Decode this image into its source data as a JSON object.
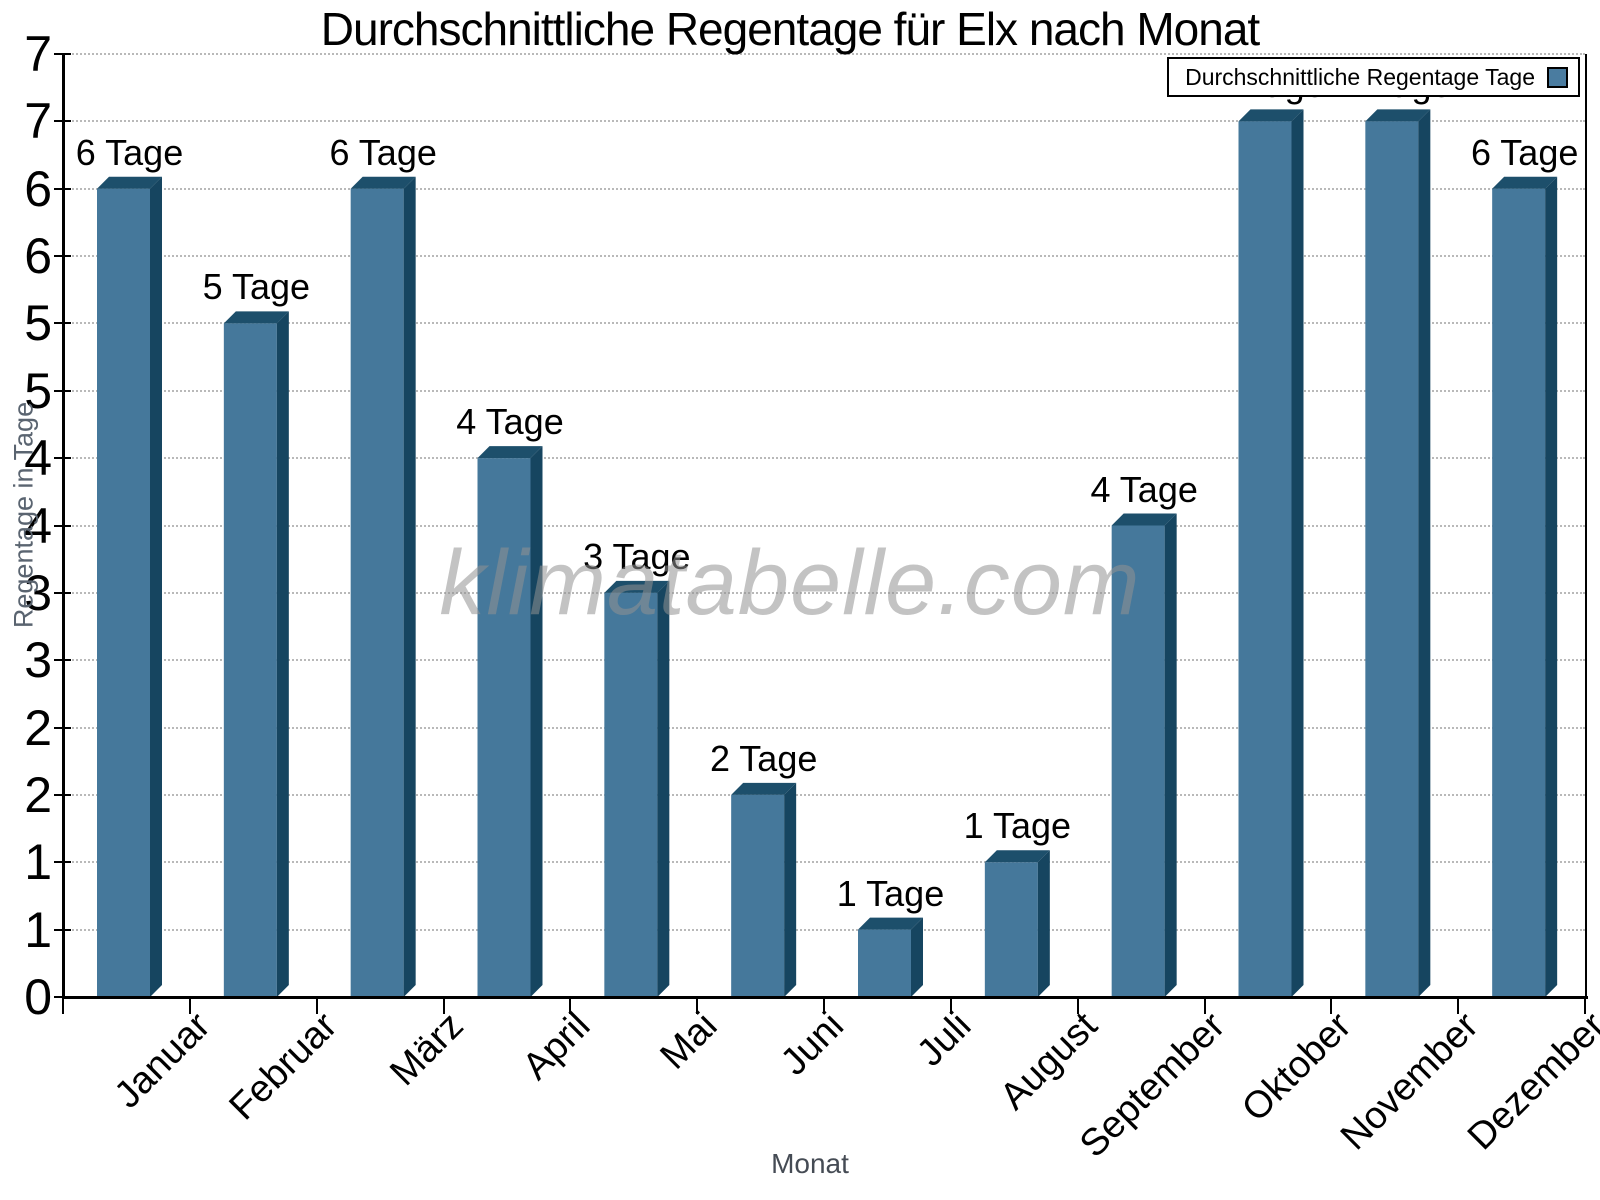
{
  "title": "Durchschnittliche Regentage für Elx nach Monat",
  "watermark": "klimatabelle.com",
  "legend": {
    "label": "Durchschnittliche Regentage Tage"
  },
  "axes": {
    "x_title": "Monat",
    "y_title": "Regentage in Tage"
  },
  "colors": {
    "bar_front": "#45789B",
    "bar_top": "#1D4F6B",
    "bar_side": "#164560",
    "legend_swatch": "#4A7CA0",
    "grid": "#b9b9b9",
    "axis": "#000000",
    "axis_title": "#5a6470",
    "watermark": "#919191"
  },
  "chart_data": {
    "type": "bar",
    "title": "Durchschnittliche Regentage für Elx nach Monat",
    "xlabel": "Monat",
    "ylabel": "Regentage in Tage",
    "categories": [
      "Januar",
      "Februar",
      "März",
      "April",
      "Mai",
      "Juni",
      "Juli",
      "August",
      "September",
      "Oktober",
      "November",
      "Dezember"
    ],
    "values": [
      6,
      5,
      6,
      4,
      3,
      1.5,
      0.5,
      1,
      3.5,
      6.5,
      6.5,
      6
    ],
    "bar_labels": [
      "6 Tage",
      "5 Tage",
      "6 Tage",
      "4 Tage",
      "3 Tage",
      "2 Tage",
      "1 Tage",
      "1 Tage",
      "4 Tage",
      "7 Tage",
      "7 Tage",
      "6 Tage"
    ],
    "series_name": "Durchschnittliche Regentage Tage",
    "ylim": [
      0,
      7
    ],
    "ytick_step": 0.5,
    "ytick_labels": [
      "0",
      "1",
      "1",
      "2",
      "2",
      "3",
      "3",
      "4",
      "4",
      "5",
      "5",
      "6",
      "6",
      "7",
      "7"
    ],
    "grid": "horizontal-dotted",
    "legend_position": "top-right"
  }
}
